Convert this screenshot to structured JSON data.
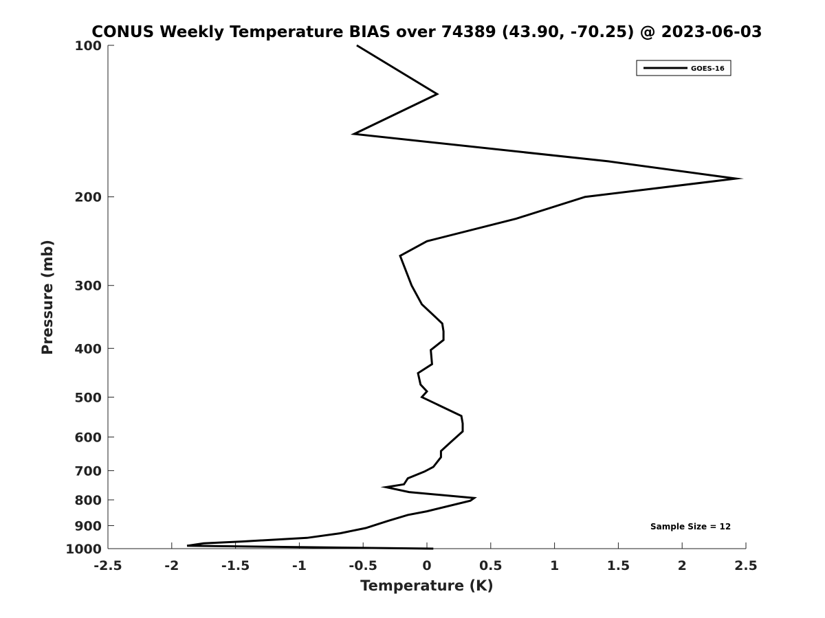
{
  "chart_data": {
    "type": "line",
    "title": "CONUS Weekly Temperature BIAS over 74389 (43.90, -70.25) @ 2023-06-03",
    "xlabel": "Temperature (K)",
    "ylabel": "Pressure (mb)",
    "xlim": [
      -2.5,
      2.5
    ],
    "ylim": [
      100,
      1000
    ],
    "yscale": "log",
    "y_reversed": true,
    "grid": false,
    "legend_position": "top-right",
    "xticks": [
      -2.5,
      -2,
      -1.5,
      -1,
      -0.5,
      0,
      0.5,
      1,
      1.5,
      2,
      2.5
    ],
    "xtick_labels": [
      "-2.5",
      "-2",
      "-1.5",
      "-1",
      "-0.5",
      "0",
      "0.5",
      "1",
      "1.5",
      "2",
      "2.5"
    ],
    "yticks": [
      100,
      200,
      300,
      400,
      500,
      600,
      700,
      800,
      900,
      1000
    ],
    "ytick_labels": [
      "100",
      "200",
      "300",
      "400",
      "500",
      "600",
      "700",
      "800",
      "900",
      "1000"
    ],
    "annotation": "Sample Size = 12",
    "series": [
      {
        "name": "GOES-16",
        "color": "#000000",
        "points": [
          [
            -0.55,
            100
          ],
          [
            0.08,
            125
          ],
          [
            -0.57,
            150
          ],
          [
            1.42,
            170
          ],
          [
            2.42,
            184
          ],
          [
            1.24,
            200
          ],
          [
            0.7,
            221
          ],
          [
            0.0,
            245
          ],
          [
            -0.21,
            262
          ],
          [
            -0.12,
            300
          ],
          [
            -0.04,
            327
          ],
          [
            0.12,
            357
          ],
          [
            0.13,
            370
          ],
          [
            0.13,
            385
          ],
          [
            0.03,
            403
          ],
          [
            0.04,
            430
          ],
          [
            -0.07,
            448
          ],
          [
            -0.05,
            472
          ],
          [
            0.0,
            487
          ],
          [
            -0.04,
            500
          ],
          [
            0.27,
            545
          ],
          [
            0.28,
            564
          ],
          [
            0.28,
            585
          ],
          [
            0.19,
            613
          ],
          [
            0.11,
            640
          ],
          [
            0.11,
            658
          ],
          [
            0.05,
            688
          ],
          [
            -0.02,
            703
          ],
          [
            -0.15,
            725
          ],
          [
            -0.18,
            745
          ],
          [
            -0.32,
            755
          ],
          [
            -0.14,
            772
          ],
          [
            0.37,
            793
          ],
          [
            0.34,
            803
          ],
          [
            0.0,
            843
          ],
          [
            -0.15,
            857
          ],
          [
            -0.3,
            880
          ],
          [
            -0.48,
            910
          ],
          [
            -0.68,
            932
          ],
          [
            -0.94,
            952
          ],
          [
            -1.45,
            968
          ],
          [
            -1.75,
            976
          ],
          [
            -1.88,
            987
          ],
          [
            0.05,
            1000
          ]
        ]
      }
    ]
  }
}
